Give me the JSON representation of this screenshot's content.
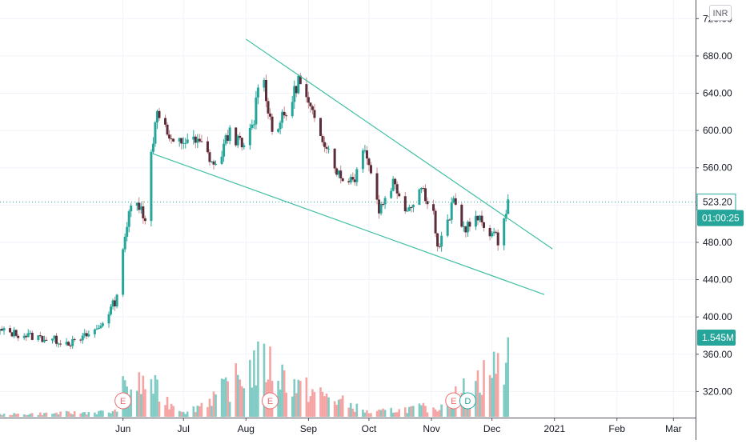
{
  "currency": "INR",
  "colors": {
    "up": "#26a69a",
    "down": "#5b2c3a",
    "up_volume": "#80cbc4",
    "down_volume": "#f6a3a3",
    "trendline": "#3fbfa3",
    "price_badge": "#26a69a",
    "grid": "#f0f3fa",
    "axis_border": "#50535e"
  },
  "last_price_label": "523.20",
  "countdown_label": "01:00:25",
  "volume_label": "1.545M",
  "chart_data": {
    "type": "candlestick",
    "y_axis": {
      "range": [
        292,
        740
      ],
      "ticks": [
        "720.00",
        "680.00",
        "640.00",
        "600.00",
        "560.00",
        "520.00",
        "480.00",
        "440.00",
        "400.00",
        "360.00",
        "320.00"
      ]
    },
    "x_axis": {
      "range": [
        "2020-04-01",
        "2021-03-12"
      ],
      "ticks": [
        {
          "label": "Jun",
          "date": "2020-06-01"
        },
        {
          "label": "Jul",
          "date": "2020-07-01"
        },
        {
          "label": "Aug",
          "date": "2020-08-01"
        },
        {
          "label": "Sep",
          "date": "2020-09-01"
        },
        {
          "label": "Oct",
          "date": "2020-10-01"
        },
        {
          "label": "Nov",
          "date": "2020-11-01"
        },
        {
          "label": "Dec",
          "date": "2020-12-01"
        },
        {
          "label": "2021",
          "date": "2021-01-01"
        },
        {
          "label": "Feb",
          "date": "2021-02-01"
        },
        {
          "label": "Mar",
          "date": "2021-03-01"
        }
      ]
    },
    "grid": true,
    "last_price": 523.2,
    "price_series": [
      {
        "date": "2020-04-01",
        "close": 385
      },
      {
        "date": "2020-04-20",
        "close": 378
      },
      {
        "date": "2020-05-08",
        "close": 372
      },
      {
        "date": "2020-05-20",
        "close": 388
      },
      {
        "date": "2020-05-29",
        "close": 420
      },
      {
        "date": "2020-06-01",
        "close": 478
      },
      {
        "date": "2020-06-05",
        "close": 518
      },
      {
        "date": "2020-06-10",
        "close": 522
      },
      {
        "date": "2020-06-12",
        "close": 500
      },
      {
        "date": "2020-06-15",
        "close": 575
      },
      {
        "date": "2020-06-18",
        "close": 625
      },
      {
        "date": "2020-06-25",
        "close": 585
      },
      {
        "date": "2020-07-03",
        "close": 590
      },
      {
        "date": "2020-07-10",
        "close": 585
      },
      {
        "date": "2020-07-17",
        "close": 560
      },
      {
        "date": "2020-07-24",
        "close": 600
      },
      {
        "date": "2020-07-31",
        "close": 580
      },
      {
        "date": "2020-08-05",
        "close": 610
      },
      {
        "date": "2020-08-08",
        "close": 675
      },
      {
        "date": "2020-08-14",
        "close": 600
      },
      {
        "date": "2020-08-22",
        "close": 620
      },
      {
        "date": "2020-08-27",
        "close": 655
      },
      {
        "date": "2020-09-03",
        "close": 615
      },
      {
        "date": "2020-09-10",
        "close": 585
      },
      {
        "date": "2020-09-17",
        "close": 548
      },
      {
        "date": "2020-09-24",
        "close": 550
      },
      {
        "date": "2020-09-29",
        "close": 585
      },
      {
        "date": "2020-10-06",
        "close": 515
      },
      {
        "date": "2020-10-13",
        "close": 545
      },
      {
        "date": "2020-10-20",
        "close": 515
      },
      {
        "date": "2020-10-27",
        "close": 540
      },
      {
        "date": "2020-11-02",
        "close": 512
      },
      {
        "date": "2020-11-04",
        "close": 472
      },
      {
        "date": "2020-11-09",
        "close": 500
      },
      {
        "date": "2020-11-12",
        "close": 525
      },
      {
        "date": "2020-11-17",
        "close": 495
      },
      {
        "date": "2020-11-24",
        "close": 505
      },
      {
        "date": "2020-12-01",
        "close": 490
      },
      {
        "date": "2020-12-04",
        "close": 482
      },
      {
        "date": "2020-12-07",
        "close": 505
      },
      {
        "date": "2020-12-09",
        "close": 523
      }
    ],
    "volume_series": [
      {
        "date": "2020-04-01",
        "volume": 0.05
      },
      {
        "date": "2020-05-28",
        "volume": 0.12
      },
      {
        "date": "2020-06-01",
        "volume": 0.65
      },
      {
        "date": "2020-06-15",
        "volume": 0.8
      },
      {
        "date": "2020-06-20",
        "volume": 0.45
      },
      {
        "date": "2020-07-03",
        "volume": 0.1
      },
      {
        "date": "2020-07-20",
        "volume": 0.6
      },
      {
        "date": "2020-07-26",
        "volume": 0.8
      },
      {
        "date": "2020-08-05",
        "volume": 1.2
      },
      {
        "date": "2020-08-12",
        "volume": 1.25
      },
      {
        "date": "2020-08-27",
        "volume": 0.7
      },
      {
        "date": "2020-09-15",
        "volume": 0.4
      },
      {
        "date": "2020-10-01",
        "volume": 0.1
      },
      {
        "date": "2020-10-28",
        "volume": 0.22
      },
      {
        "date": "2020-11-02",
        "volume": 0.15
      },
      {
        "date": "2020-12-07",
        "volume": 1.3
      },
      {
        "date": "2020-12-09",
        "volume": 1.545
      }
    ],
    "events": [
      {
        "label": "E",
        "date": "2020-06-01"
      },
      {
        "label": "E",
        "date": "2020-08-13"
      },
      {
        "label": "E",
        "date": "2020-11-12"
      },
      {
        "label": "D",
        "date": "2020-11-19"
      }
    ],
    "trendlines": [
      {
        "start": {
          "date": "2020-08-01",
          "price": 698
        },
        "end": {
          "date": "2020-12-31",
          "price": 473
        }
      },
      {
        "start": {
          "date": "2020-06-16",
          "price": 575
        },
        "end": {
          "date": "2020-12-27",
          "price": 424
        }
      }
    ]
  }
}
